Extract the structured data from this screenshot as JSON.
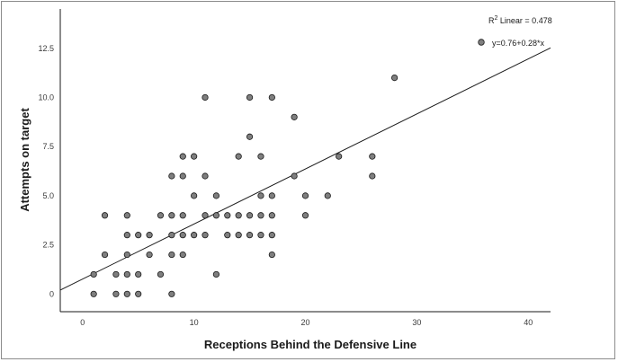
{
  "chart_data": {
    "type": "scatter",
    "title": "",
    "xlabel": "Receptions Behind the Defensive Line",
    "ylabel": "Attempts on target",
    "xlim": [
      -2,
      42
    ],
    "ylim": [
      -0.9,
      14.5
    ],
    "xticks": [
      0,
      10,
      20,
      30,
      40
    ],
    "yticks": [
      0,
      2.5,
      5.0,
      7.5,
      10.0,
      12.5
    ],
    "ytick_labels": [
      "0",
      "2.5",
      "5.0",
      "7.5",
      "10.0",
      "12.5"
    ],
    "r2_label": "R² Linear = 0.478",
    "r2_prefix": "R",
    "r2_sup": "2",
    "r2_rest": " Linear = 0.478",
    "fit_label": "y=0.76+0.28*x",
    "fit": {
      "intercept": 0.76,
      "slope": 0.28,
      "x_range": [
        -2,
        42
      ]
    },
    "points": [
      [
        1,
        0
      ],
      [
        1,
        1
      ],
      [
        2,
        4
      ],
      [
        2,
        2
      ],
      [
        3,
        0
      ],
      [
        3,
        1
      ],
      [
        4,
        0
      ],
      [
        4,
        1
      ],
      [
        4,
        2
      ],
      [
        4,
        3
      ],
      [
        4,
        4
      ],
      [
        5,
        0
      ],
      [
        5,
        1
      ],
      [
        5,
        3
      ],
      [
        6,
        2
      ],
      [
        6,
        3
      ],
      [
        7,
        1
      ],
      [
        7,
        4
      ],
      [
        8,
        0
      ],
      [
        8,
        2
      ],
      [
        8,
        3
      ],
      [
        8,
        4
      ],
      [
        8,
        6
      ],
      [
        9,
        2
      ],
      [
        9,
        3
      ],
      [
        9,
        4
      ],
      [
        9,
        6
      ],
      [
        9,
        7
      ],
      [
        10,
        3
      ],
      [
        10,
        5
      ],
      [
        10,
        7
      ],
      [
        11,
        3
      ],
      [
        11,
        4
      ],
      [
        11,
        6
      ],
      [
        11,
        10
      ],
      [
        12,
        1
      ],
      [
        12,
        4
      ],
      [
        12,
        5
      ],
      [
        13,
        3
      ],
      [
        13,
        4
      ],
      [
        14,
        3
      ],
      [
        14,
        4
      ],
      [
        14,
        7
      ],
      [
        15,
        3
      ],
      [
        15,
        4
      ],
      [
        15,
        8
      ],
      [
        15,
        10
      ],
      [
        16,
        3
      ],
      [
        16,
        4
      ],
      [
        16,
        5
      ],
      [
        16,
        7
      ],
      [
        17,
        2
      ],
      [
        17,
        3
      ],
      [
        17,
        4
      ],
      [
        17,
        5
      ],
      [
        17,
        10
      ],
      [
        19,
        6
      ],
      [
        19,
        9
      ],
      [
        20,
        4
      ],
      [
        20,
        5
      ],
      [
        22,
        5
      ],
      [
        23,
        7
      ],
      [
        26,
        6
      ],
      [
        26,
        7
      ],
      [
        28,
        11
      ]
    ],
    "legend_marker_color": "#7f7f7f",
    "marker_color": "#7f7f7f",
    "line_color": "#1a1a1a"
  }
}
